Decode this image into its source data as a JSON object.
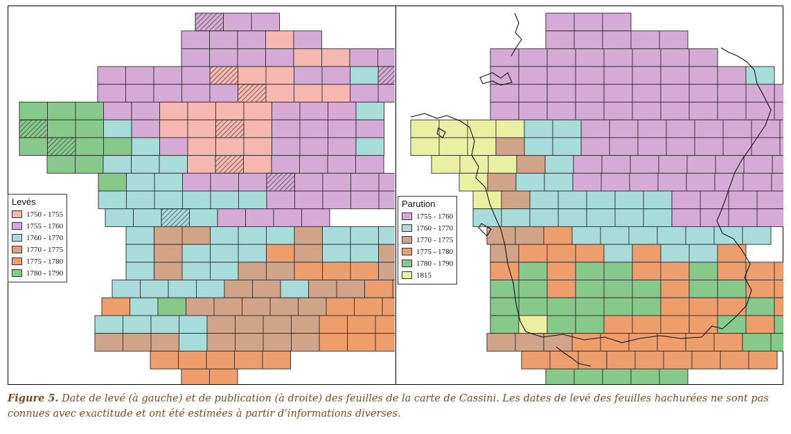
{
  "colors": {
    "p1750": "#f6b7b0",
    "p1755": "#d6aad6",
    "p1760": "#a7dcdb",
    "p1770": "#d1a48a",
    "p1775": "#ee9e6c",
    "p1780": "#86c98a",
    "p1815": "#e9f0a2",
    "grid": "#2b2b2b",
    "coast": "#111111"
  },
  "left_map": {
    "legend": {
      "title": "Levés",
      "items": [
        {
          "label": "1750 - 1755",
          "color": "#f6b7b0"
        },
        {
          "label": "1755 - 1760",
          "color": "#d6aad6"
        },
        {
          "label": "1760 - 1770",
          "color": "#a7dcdb"
        },
        {
          "label": "1770 - 1775",
          "color": "#d1a48a"
        },
        {
          "label": "1775 - 1780",
          "color": "#ee9e6c"
        },
        {
          "label": "1780 - 1790",
          "color": "#86c98a"
        }
      ]
    },
    "rows": [
      [
        {
          "span": 1,
          "fill": "p1755",
          "hatched": true
        },
        {
          "span": 2,
          "fill": "p1755"
        }
      ],
      [
        {
          "span": 1,
          "fill": "p1755"
        },
        {
          "span": 1,
          "fill": "p1755"
        },
        {
          "span": 1,
          "fill": "p1755"
        },
        {
          "span": 1,
          "fill": "p1750"
        },
        {
          "span": 1,
          "fill": "p1755"
        }
      ],
      [
        {
          "span": 3,
          "fill": "p1755"
        },
        {
          "span": 1,
          "fill": "p1755"
        },
        {
          "span": 2,
          "fill": "p1750"
        },
        {
          "span": 3,
          "fill": "p1755"
        }
      ],
      [
        {
          "span": 3,
          "fill": "p1755"
        },
        {
          "span": 1,
          "fill": "p1755"
        },
        {
          "span": 1,
          "fill": "p1750",
          "hatched": true
        },
        {
          "span": 2,
          "fill": "p1750"
        },
        {
          "span": 2,
          "fill": "p1755"
        },
        {
          "span": 1,
          "fill": "p1760"
        },
        {
          "span": 1,
          "fill": "p1755",
          "hatched": true
        }
      ],
      [
        {
          "span": 4,
          "fill": "p1755"
        },
        {
          "span": 1,
          "fill": "p1755"
        },
        {
          "span": 1,
          "fill": "p1750",
          "hatched": true
        },
        {
          "span": 3,
          "fill": "p1750"
        },
        {
          "span": 5,
          "fill": "p1755"
        },
        {
          "span": 1,
          "fill": "p1760"
        }
      ],
      [
        {
          "span": 3,
          "fill": "p1780"
        },
        {
          "span": 1,
          "fill": "p1755"
        },
        {
          "span": 1,
          "fill": "p1755"
        },
        {
          "span": 4,
          "fill": "p1750"
        },
        {
          "span": 3,
          "fill": "p1755"
        },
        {
          "span": 1,
          "fill": "p1760"
        }
      ],
      [
        {
          "span": 1,
          "fill": "p1780",
          "hatched": true
        },
        {
          "span": 2,
          "fill": "p1780"
        },
        {
          "span": 1,
          "fill": "p1760"
        },
        {
          "span": 1,
          "fill": "p1755"
        },
        {
          "span": 2,
          "fill": "p1750"
        },
        {
          "span": 1,
          "fill": "p1750",
          "hatched": true
        },
        {
          "span": 1,
          "fill": "p1750"
        },
        {
          "span": 3,
          "fill": "p1755"
        },
        {
          "span": 1,
          "fill": "p1755"
        }
      ],
      [
        {
          "span": 1,
          "fill": "p1780"
        },
        {
          "span": 1,
          "fill": "p1780",
          "hatched": true
        },
        {
          "span": 2,
          "fill": "p1780"
        },
        {
          "span": 1,
          "fill": "p1760"
        },
        {
          "span": 1,
          "fill": "p1755"
        },
        {
          "span": 3,
          "fill": "p1750"
        },
        {
          "span": 3,
          "fill": "p1755"
        },
        {
          "span": 1,
          "fill": "p1760"
        }
      ],
      [
        {
          "span": 2,
          "fill": "p1780"
        },
        {
          "span": 1,
          "fill": "p1760"
        },
        {
          "span": 1,
          "fill": "p1760"
        },
        {
          "span": 1,
          "fill": "p1760"
        },
        {
          "span": 1,
          "fill": "p1750"
        },
        {
          "span": 1,
          "fill": "p1750",
          "hatched": true
        },
        {
          "span": 1,
          "fill": "p1750"
        },
        {
          "span": 4,
          "fill": "p1755"
        }
      ],
      [
        {
          "span": 1,
          "fill": "p1780"
        },
        {
          "span": 2,
          "fill": "p1760"
        },
        {
          "span": 1,
          "fill": "p1755"
        },
        {
          "span": 2,
          "fill": "p1755"
        },
        {
          "span": 1,
          "fill": "p1755",
          "hatched": true
        },
        {
          "span": 4,
          "fill": "p1755"
        }
      ],
      [
        {
          "span": 3,
          "fill": "p1760"
        },
        {
          "span": 2,
          "fill": "p1760"
        },
        {
          "span": 1,
          "fill": "p1760"
        },
        {
          "span": 5,
          "fill": "p1755"
        }
      ],
      [
        {
          "span": 2,
          "fill": "p1760"
        },
        {
          "span": 1,
          "fill": "p1760",
          "hatched": true
        },
        {
          "span": 1,
          "fill": "p1760"
        },
        {
          "span": 1,
          "fill": "p1755"
        },
        {
          "span": 3,
          "fill": "p1755"
        }
      ],
      [
        {
          "span": 1,
          "fill": "p1760"
        },
        {
          "span": 2,
          "fill": "p1770"
        },
        {
          "span": 3,
          "fill": "p1760"
        },
        {
          "span": 1,
          "fill": "p1770"
        },
        {
          "span": 3,
          "fill": "p1760"
        },
        {
          "span": 1,
          "fill": "p1775",
          "hatched": true
        }
      ],
      [
        {
          "span": 1,
          "fill": "p1760"
        },
        {
          "span": 1,
          "fill": "p1770"
        },
        {
          "span": 3,
          "fill": "p1760"
        },
        {
          "span": 1,
          "fill": "p1775"
        },
        {
          "span": 1,
          "fill": "p1770"
        },
        {
          "span": 2,
          "fill": "p1760"
        },
        {
          "span": 1,
          "fill": "p1770"
        },
        {
          "span": 2,
          "fill": "p1775"
        }
      ],
      [
        {
          "span": 1,
          "fill": "p1760"
        },
        {
          "span": 1,
          "fill": "p1770"
        },
        {
          "span": 2,
          "fill": "p1760"
        },
        {
          "span": 2,
          "fill": "p1770"
        },
        {
          "span": 1,
          "fill": "p1775"
        },
        {
          "span": 2,
          "fill": "p1775"
        },
        {
          "span": 1,
          "fill": "p1770"
        },
        {
          "span": 3,
          "fill": "p1775"
        }
      ],
      [
        {
          "span": 2,
          "fill": "p1760"
        },
        {
          "span": 2,
          "fill": "p1760"
        },
        {
          "span": 2,
          "fill": "p1770"
        },
        {
          "span": 1,
          "fill": "p1760"
        },
        {
          "span": 2,
          "fill": "p1770"
        },
        {
          "span": 3,
          "fill": "p1775"
        }
      ],
      [
        {
          "span": 1,
          "fill": "p1775"
        },
        {
          "span": 1,
          "fill": "p1760"
        },
        {
          "span": 1,
          "fill": "p1780"
        },
        {
          "span": 2,
          "fill": "p1770"
        },
        {
          "span": 3,
          "fill": "p1770"
        },
        {
          "span": 4,
          "fill": "p1775"
        }
      ],
      [
        {
          "span": 3,
          "fill": "p1760"
        },
        {
          "span": 1,
          "fill": "p1760"
        },
        {
          "span": 4,
          "fill": "p1770"
        },
        {
          "span": 4,
          "fill": "p1775"
        }
      ],
      [
        {
          "span": 3,
          "fill": "p1770"
        },
        {
          "span": 1,
          "fill": "p1760"
        },
        {
          "span": 4,
          "fill": "p1770"
        },
        {
          "span": 3,
          "fill": "p1775"
        }
      ],
      [
        {
          "span": 2,
          "fill": "p1775"
        },
        {
          "span": 3,
          "fill": "p1775"
        }
      ],
      [
        {
          "span": 2,
          "fill": "p1775"
        }
      ]
    ]
  },
  "right_map": {
    "legend": {
      "title": "Parution",
      "items": [
        {
          "label": "1755 - 1760",
          "color": "#d6aad6"
        },
        {
          "label": "1760 - 1770",
          "color": "#a7dcdb"
        },
        {
          "label": "1770 - 1775",
          "color": "#d1a48a"
        },
        {
          "label": "1775 - 1780",
          "color": "#ee9e6c"
        },
        {
          "label": "1780 - 1790",
          "color": "#86c98a"
        },
        {
          "label": "1815",
          "color": "#e9f0a2"
        }
      ]
    },
    "rows": [
      [
        {
          "span": 3,
          "fill": "p1755"
        }
      ],
      [
        {
          "span": 5,
          "fill": "p1755"
        }
      ],
      [
        {
          "span": 8,
          "fill": "p1755"
        }
      ],
      [
        {
          "span": 9,
          "fill": "p1755"
        },
        {
          "span": 1,
          "fill": "p1760"
        }
      ],
      [
        {
          "span": 2,
          "fill": "p1755"
        },
        {
          "span": 9,
          "fill": "p1755"
        },
        {
          "span": 2,
          "fill": "p1760"
        }
      ],
      [
        {
          "span": 3,
          "fill": "p1755"
        },
        {
          "span": 8,
          "fill": "p1755"
        },
        {
          "span": 3,
          "fill": "p1760"
        }
      ],
      [
        {
          "span": 4,
          "fill": "p1815"
        },
        {
          "span": 2,
          "fill": "p1760"
        },
        {
          "span": 7,
          "fill": "p1755"
        },
        {
          "span": 2,
          "fill": "p1755"
        },
        {
          "span": 1,
          "fill": "p1760"
        }
      ],
      [
        {
          "span": 3,
          "fill": "p1815"
        },
        {
          "span": 1,
          "fill": "p1770"
        },
        {
          "span": 2,
          "fill": "p1760"
        },
        {
          "span": 9,
          "fill": "p1755"
        },
        {
          "span": 1,
          "fill": "p1760"
        }
      ],
      [
        {
          "span": 2,
          "fill": "p1815"
        },
        {
          "span": 1,
          "fill": "p1815"
        },
        {
          "span": 1,
          "fill": "p1770"
        },
        {
          "span": 1,
          "fill": "p1760"
        },
        {
          "span": 8,
          "fill": "p1755"
        },
        {
          "span": 1,
          "fill": "p1760"
        }
      ],
      [
        {
          "span": 1,
          "fill": "p1815"
        },
        {
          "span": 1,
          "fill": "p1770"
        },
        {
          "span": 2,
          "fill": "p1760"
        },
        {
          "span": 9,
          "fill": "p1755"
        },
        {
          "span": 1,
          "fill": "p1760"
        }
      ],
      [
        {
          "span": 1,
          "fill": "p1815"
        },
        {
          "span": 1,
          "fill": "p1770"
        },
        {
          "span": 3,
          "fill": "p1760"
        },
        {
          "span": 2,
          "fill": "p1760"
        },
        {
          "span": 5,
          "fill": "p1755"
        }
      ],
      [
        {
          "span": 2,
          "fill": "p1760"
        },
        {
          "span": 5,
          "fill": "p1760"
        },
        {
          "span": 4,
          "fill": "p1755"
        }
      ],
      [
        {
          "span": 2,
          "fill": "p1770"
        },
        {
          "span": 1,
          "fill": "p1775"
        },
        {
          "span": 3,
          "fill": "p1760"
        },
        {
          "span": 2,
          "fill": "p1760"
        },
        {
          "span": 2,
          "fill": "p1760"
        }
      ],
      [
        {
          "span": 1,
          "fill": "p1770"
        },
        {
          "span": 3,
          "fill": "p1775"
        },
        {
          "span": 1,
          "fill": "p1760"
        },
        {
          "span": 1,
          "fill": "p1775"
        },
        {
          "span": 2,
          "fill": "p1760"
        },
        {
          "span": 1,
          "fill": "p1775"
        }
      ],
      [
        {
          "span": 1,
          "fill": "p1775"
        },
        {
          "span": 1,
          "fill": "p1780"
        },
        {
          "span": 1,
          "fill": "p1775"
        },
        {
          "span": 2,
          "fill": "p1780"
        },
        {
          "span": 2,
          "fill": "p1775"
        },
        {
          "span": 1,
          "fill": "p1780"
        },
        {
          "span": 1,
          "fill": "p1775"
        },
        {
          "span": 2,
          "fill": "p1775"
        }
      ],
      [
        {
          "span": 2,
          "fill": "p1780"
        },
        {
          "span": 1,
          "fill": "p1775"
        },
        {
          "span": 3,
          "fill": "p1780"
        },
        {
          "span": 1,
          "fill": "p1775"
        },
        {
          "span": 1,
          "fill": "p1780"
        },
        {
          "span": 1,
          "fill": "p1780"
        },
        {
          "span": 2,
          "fill": "p1775"
        }
      ],
      [
        {
          "span": 3,
          "fill": "p1780"
        },
        {
          "span": 3,
          "fill": "p1780"
        },
        {
          "span": 3,
          "fill": "p1775"
        },
        {
          "span": 1,
          "fill": "p1780"
        },
        {
          "span": 3,
          "fill": "p1775"
        }
      ],
      [
        {
          "span": 1,
          "fill": "p1780"
        },
        {
          "span": 1,
          "fill": "p1815"
        },
        {
          "span": 1,
          "fill": "p1780"
        },
        {
          "span": 1,
          "fill": "p1780"
        },
        {
          "span": 3,
          "fill": "p1775"
        },
        {
          "span": 1,
          "fill": "p1775"
        },
        {
          "span": 1,
          "fill": "p1780"
        },
        {
          "span": 1,
          "fill": "p1775"
        },
        {
          "span": 1,
          "fill": "p1780"
        },
        {
          "span": 1,
          "fill": "p1780"
        }
      ],
      [
        {
          "span": 2,
          "fill": "p1770"
        },
        {
          "span": 1,
          "fill": "p1770"
        },
        {
          "span": 2,
          "fill": "p1775"
        },
        {
          "span": 2,
          "fill": "p1775"
        },
        {
          "span": 2,
          "fill": "p1775"
        },
        {
          "span": 2,
          "fill": "p1780"
        }
      ],
      [
        {
          "span": 3,
          "fill": "p1775"
        },
        {
          "span": 4,
          "fill": "p1775"
        },
        {
          "span": 1,
          "fill": "p1775"
        },
        {
          "span": 1,
          "fill": "p1775"
        }
      ],
      [
        {
          "span": 3,
          "fill": "p1780"
        },
        {
          "span": 2,
          "fill": "p1780"
        }
      ]
    ]
  },
  "caption": {
    "label": "Figure 5.",
    "text": " Date de levé (à gauche) et de publication (à droite) des feuilles de la carte de Cassini. Les dates de levé des feuilles hachurées ne sont pas connues avec exactitude et ont été estimées à partir d’informations diverses."
  }
}
